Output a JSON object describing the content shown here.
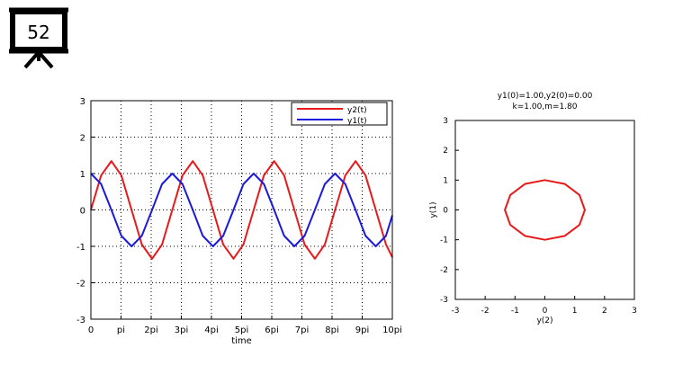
{
  "slide": {
    "number": "52"
  },
  "chart_data": [
    {
      "type": "line",
      "title": "",
      "xlabel": "time",
      "ylabel": "",
      "xlim": [
        0,
        10
      ],
      "ylim": [
        -3,
        3
      ],
      "x_unit": "pi",
      "x_ticks": [
        "0",
        "pi",
        "2pi",
        "3pi",
        "4pi",
        "5pi",
        "6pi",
        "7pi",
        "8pi",
        "9pi",
        "10pi"
      ],
      "y_ticks": [
        "3",
        "2",
        "1",
        "0",
        "-1",
        "-2",
        "-3"
      ],
      "grid": true,
      "legend_position": "top-right",
      "series": [
        {
          "name": "y2(t)",
          "color": "#e8191a",
          "x": [
            0,
            0.34,
            0.68,
            1.01,
            1.35,
            1.69,
            2.03,
            2.36,
            2.7,
            3.04,
            3.38,
            3.71,
            4.05,
            4.39,
            4.73,
            5.06,
            5.4,
            5.74,
            6.08,
            6.41,
            6.75,
            7.09,
            7.43,
            7.76,
            8.1,
            8.44,
            8.78,
            9.11,
            9.45,
            9.79,
            10.0
          ],
          "y": [
            0,
            0.95,
            1.34,
            0.95,
            0,
            -0.95,
            -1.34,
            -0.95,
            0,
            0.95,
            1.34,
            0.95,
            0,
            -0.95,
            -1.34,
            -0.95,
            0,
            0.95,
            1.34,
            0.95,
            0,
            -0.95,
            -1.34,
            -0.95,
            0,
            0.95,
            1.34,
            0.95,
            0,
            -0.95,
            -1.3
          ]
        },
        {
          "name": "y1(t)",
          "color": "#1a1adc",
          "x": [
            0,
            0.34,
            0.68,
            1.01,
            1.35,
            1.69,
            2.03,
            2.36,
            2.7,
            3.04,
            3.38,
            3.71,
            4.05,
            4.39,
            4.73,
            5.06,
            5.4,
            5.74,
            6.08,
            6.41,
            6.75,
            7.09,
            7.43,
            7.76,
            8.1,
            8.44,
            8.78,
            9.11,
            9.45,
            9.79,
            10.0
          ],
          "y": [
            1,
            0.71,
            0,
            -0.71,
            -1,
            -0.71,
            0,
            0.71,
            1,
            0.71,
            0,
            -0.71,
            -1,
            -0.71,
            0,
            0.71,
            1,
            0.71,
            0,
            -0.71,
            -1,
            -0.71,
            0,
            0.71,
            1,
            0.71,
            0,
            -0.71,
            -1,
            -0.71,
            -0.15
          ]
        }
      ]
    },
    {
      "type": "line",
      "title": "y1(0)=1.00,y2(0)=0.00",
      "subtitle": "k=1.00,m=1.80",
      "xlabel": "y(2)",
      "ylabel": "y(1)",
      "xlim": [
        -3,
        3
      ],
      "ylim": [
        -3,
        3
      ],
      "x_ticks": [
        "-3",
        "-2",
        "-1",
        "0",
        "1",
        "2",
        "3"
      ],
      "y_ticks": [
        "3",
        "2",
        "1",
        "0",
        "-1",
        "-2",
        "-3"
      ],
      "grid": false,
      "series": [
        {
          "color": "#e8191a",
          "x": [
            0,
            0.67,
            1.16,
            1.34,
            1.16,
            0.67,
            0,
            -0.67,
            -1.16,
            -1.34,
            -1.16,
            -0.67,
            0
          ],
          "y": [
            1,
            0.87,
            0.5,
            0,
            -0.5,
            -0.87,
            -1,
            -0.87,
            -0.5,
            0,
            0.5,
            0.87,
            1
          ]
        }
      ]
    }
  ]
}
